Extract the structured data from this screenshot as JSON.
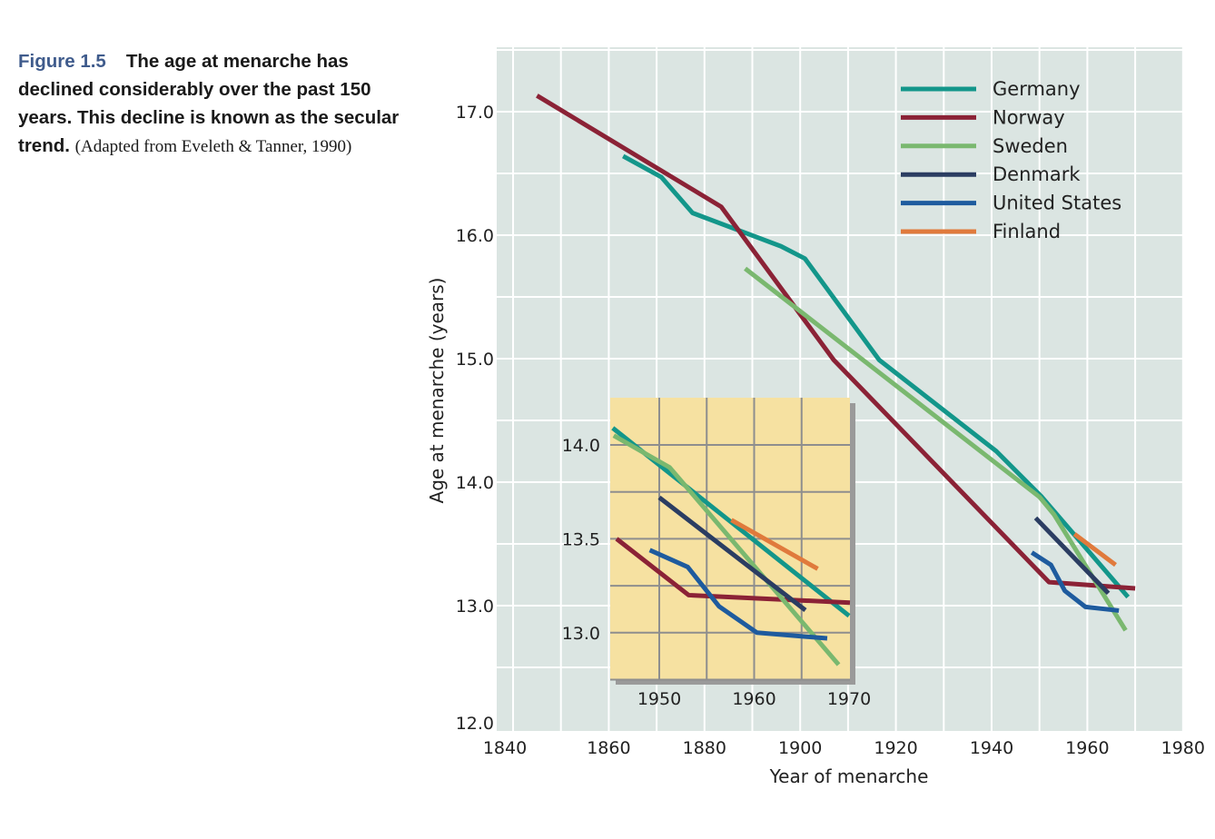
{
  "caption": {
    "figure_label": "Figure 1.5",
    "title": "The age at menarche has declined considerably over the past 150 years. This decline is known as the secular trend.",
    "source": "(Adapted from Eveleth & Tanner, 1990)"
  },
  "colors": {
    "background": "#dbe5e2",
    "inset_background": "#f6e1a1",
    "grid": "#ffffff",
    "inset_grid": "#8e8e8e"
  },
  "chart_data": [
    {
      "type": "line",
      "title": "",
      "xlabel": "Year of menarche",
      "ylabel": "Age at menarche (years)",
      "xlim": [
        1840,
        1980
      ],
      "ylim": [
        12.0,
        17.5
      ],
      "x_ticks": [
        "1840",
        "1860",
        "1880",
        "1900",
        "1920",
        "1940",
        "1960",
        "1980"
      ],
      "y_ticks": [
        "12.0",
        "13.0",
        "14.0",
        "15.0",
        "16.0",
        "17.0"
      ],
      "grid": true,
      "legend_position": "top-right",
      "series": [
        {
          "name": "Germany",
          "color": "#13968a",
          "points": [
            [
              1863,
              16.64
            ],
            [
              1871,
              16.47
            ],
            [
              1877.5,
              16.18
            ],
            [
              1896,
              15.91
            ],
            [
              1901,
              15.81
            ],
            [
              1916.5,
              14.99
            ],
            [
              1941,
              14.25
            ],
            [
              1950.5,
              13.88
            ],
            [
              1968.5,
              13.07
            ]
          ]
        },
        {
          "name": "Norway",
          "color": "#8b2236",
          "points": [
            [
              1845,
              17.13
            ],
            [
              1883.5,
              16.23
            ],
            [
              1907,
              14.99
            ],
            [
              1952,
              13.19
            ],
            [
              1970,
              13.14
            ]
          ]
        },
        {
          "name": "Sweden",
          "color": "#7ab86f",
          "points": [
            [
              1888.5,
              15.73
            ],
            [
              1950,
              13.88
            ],
            [
              1953,
              13.74
            ],
            [
              1968,
              12.8
            ]
          ]
        },
        {
          "name": "Denmark",
          "color": "#2b3d62",
          "points": [
            [
              1949.2,
              13.71
            ],
            [
              1964.4,
              13.1
            ]
          ]
        },
        {
          "name": "United States",
          "color": "#1e5b9e",
          "points": [
            [
              1948.4,
              13.43
            ],
            [
              1952.4,
              13.33
            ],
            [
              1955.3,
              13.12
            ],
            [
              1959.6,
              12.99
            ],
            [
              1966.6,
              12.96
            ]
          ]
        },
        {
          "name": "Finland",
          "color": "#e07a3c",
          "points": [
            [
              1957.3,
              13.58
            ],
            [
              1965.9,
              13.33
            ]
          ]
        }
      ]
    },
    {
      "type": "line",
      "title": "",
      "xlim": [
        1945,
        1970
      ],
      "ylim": [
        12.75,
        14.25
      ],
      "x_ticks": [
        "1950",
        "1960",
        "1970"
      ],
      "y_ticks": [
        "13.0",
        "13.5",
        "14.0"
      ],
      "grid": true,
      "series": [
        {
          "name": "Germany",
          "color": "#13968a",
          "points": [
            [
              1945.1,
              14.09
            ],
            [
              1970,
              13.09
            ]
          ]
        },
        {
          "name": "Norway",
          "color": "#8b2236",
          "points": [
            [
              1945.5,
              13.5
            ],
            [
              1953.1,
              13.2
            ],
            [
              1970.2,
              13.16
            ]
          ]
        },
        {
          "name": "Sweden",
          "color": "#7ab86f",
          "points": [
            [
              1945.2,
              14.05
            ],
            [
              1951.1,
              13.88
            ],
            [
              1968.9,
              12.83
            ]
          ]
        },
        {
          "name": "Denmark",
          "color": "#2b3d62",
          "points": [
            [
              1950,
              13.72
            ],
            [
              1965.4,
              13.12
            ]
          ]
        },
        {
          "name": "United States",
          "color": "#1e5b9e",
          "points": [
            [
              1949,
              13.44
            ],
            [
              1953,
              13.35
            ],
            [
              1956.3,
              13.14
            ],
            [
              1960.3,
              13.0
            ],
            [
              1967.7,
              12.97
            ]
          ]
        },
        {
          "name": "Finland",
          "color": "#e07a3c",
          "points": [
            [
              1957.6,
              13.6
            ],
            [
              1966.7,
              13.34
            ]
          ]
        }
      ]
    }
  ]
}
